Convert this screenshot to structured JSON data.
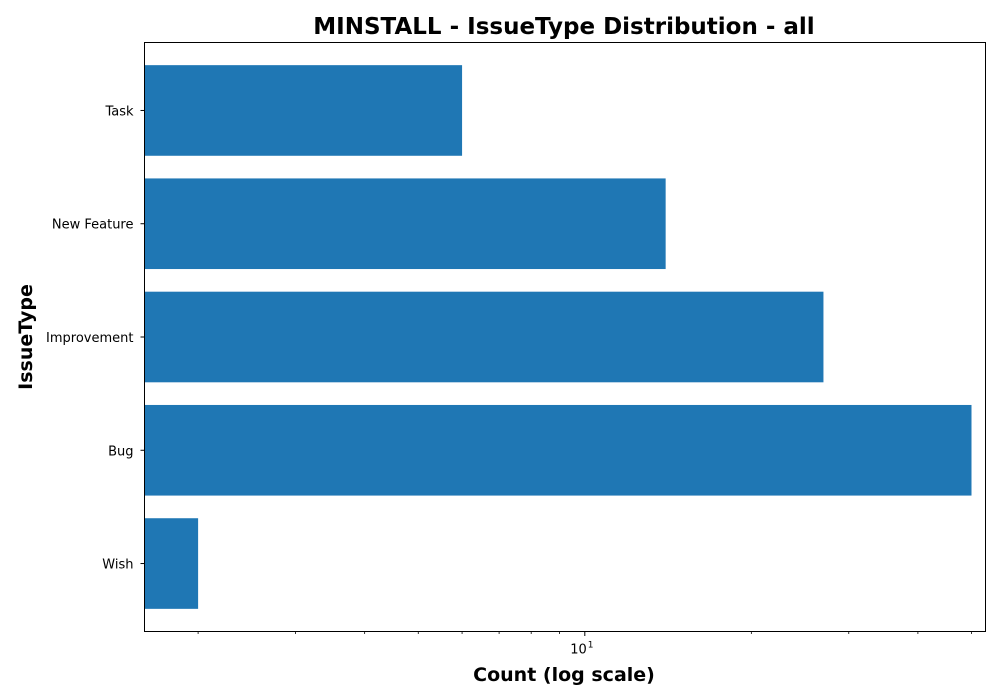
{
  "chart_data": {
    "type": "bar",
    "orientation": "horizontal",
    "title": "MINSTALL - IssueType Distribution - all",
    "xlabel": "Count (log scale)",
    "ylabel": "IssueType",
    "xscale": "log",
    "xlim": [
      1.6,
      53
    ],
    "x_ticks": [
      {
        "value": 10,
        "base": "10",
        "exponent": "1"
      }
    ],
    "x_minor_ticks": [
      2,
      3,
      4,
      5,
      6,
      7,
      8,
      9,
      20,
      30,
      40,
      50
    ],
    "categories": [
      "Task",
      "New Feature",
      "Improvement",
      "Bug",
      "Wish"
    ],
    "values": [
      6,
      14,
      27,
      50,
      2
    ],
    "bar_color": "#1f77b4",
    "grid": false,
    "legend": "none"
  }
}
